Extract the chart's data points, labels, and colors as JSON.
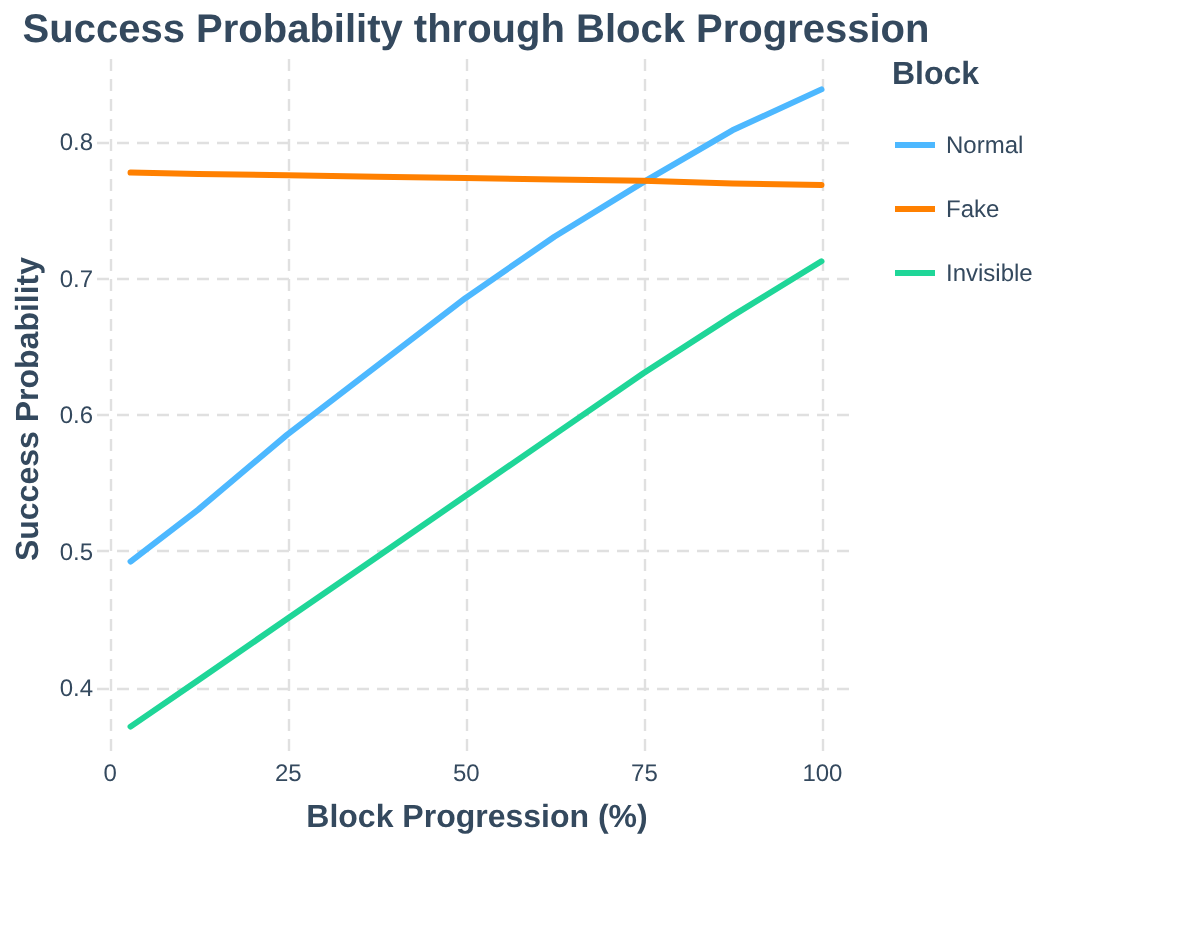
{
  "chart_data": {
    "type": "line",
    "title": "Success Probability through Block Progression",
    "xlabel": "Block Progression (%)",
    "ylabel": "Success Probability",
    "legend_title": "Block",
    "x": [
      3,
      12.5,
      25,
      37.5,
      50,
      62.5,
      75,
      87.5,
      100
    ],
    "series": [
      {
        "name": "Normal",
        "color": "#4db8ff",
        "values": [
          0.492,
          0.53,
          0.585,
          0.635,
          0.685,
          0.73,
          0.77,
          0.808,
          0.838
        ]
      },
      {
        "name": "Fake",
        "color": "#ff8000",
        "values": [
          0.777,
          0.776,
          0.775,
          0.774,
          0.773,
          0.772,
          0.771,
          0.769,
          0.768
        ]
      },
      {
        "name": "Invisible",
        "color": "#1fd698",
        "values": [
          0.371,
          0.405,
          0.45,
          0.495,
          0.54,
          0.585,
          0.63,
          0.672,
          0.712
        ]
      }
    ],
    "xlim": [
      -1.85,
      104.85
    ],
    "ylim": [
      0.348,
      0.861
    ],
    "xticks": [
      0,
      25,
      50,
      75,
      100
    ],
    "yticks": [
      0.4,
      0.5,
      0.6,
      0.7,
      0.8
    ],
    "grid": true,
    "legend": "right",
    "marker": "none",
    "line_style": "solid"
  }
}
